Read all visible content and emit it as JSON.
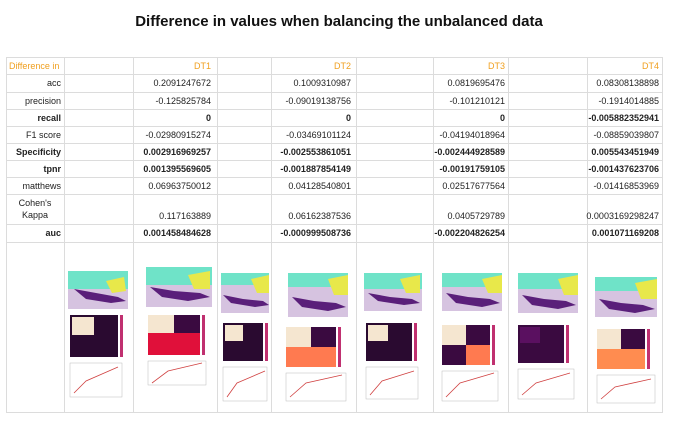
{
  "title": "Difference in values when balancing the unbalanced data",
  "table": {
    "corner": "Difference in",
    "columns": [
      "DT1",
      "DT2",
      "DT3",
      "DT4"
    ],
    "rows": [
      {
        "label": "acc",
        "bold": false,
        "values": [
          "0.2091247672",
          "0.1009310987",
          "0.0819695476",
          "0.08308138898"
        ]
      },
      {
        "label": "precision",
        "bold": false,
        "values": [
          "-0.125825784",
          "-0.09019138756",
          "-0.101210121",
          "-0.1914014885"
        ]
      },
      {
        "label": "recall",
        "bold": true,
        "values": [
          "0",
          "0",
          "0",
          "-0.005882352941"
        ]
      },
      {
        "label": "F1 score",
        "bold": false,
        "values": [
          "-0.02980915274",
          "-0.03469101124",
          "-0.04194018964",
          "-0.08859039807"
        ]
      },
      {
        "label": "Specificity",
        "bold": true,
        "values": [
          "0.002916969257",
          "-0.002553861051",
          "-0.002444928589",
          "0.005543451949"
        ]
      },
      {
        "label": "tpnr",
        "bold": true,
        "values": [
          "0.001395569605",
          "-0.001887854149",
          "-0.00191759105",
          "-0.001437623706"
        ]
      },
      {
        "label": "matthews",
        "bold": false,
        "values": [
          "0.06963750012",
          "0.04128540801",
          "0.02517677564",
          "-0.01416853969"
        ]
      },
      {
        "label": "Cohen's Kappa",
        "bold": false,
        "values": [
          "0.117163889",
          "0.06162387536",
          "0.0405729789",
          "0.0003169298247"
        ]
      },
      {
        "label": "auc",
        "bold": true,
        "values": [
          "0.001458484628",
          "-0.000999508736",
          "-0.002204826254",
          "0.001071169208"
        ]
      }
    ]
  },
  "colors": {
    "header": "#f0a020",
    "grid": "#dcdcdc"
  }
}
